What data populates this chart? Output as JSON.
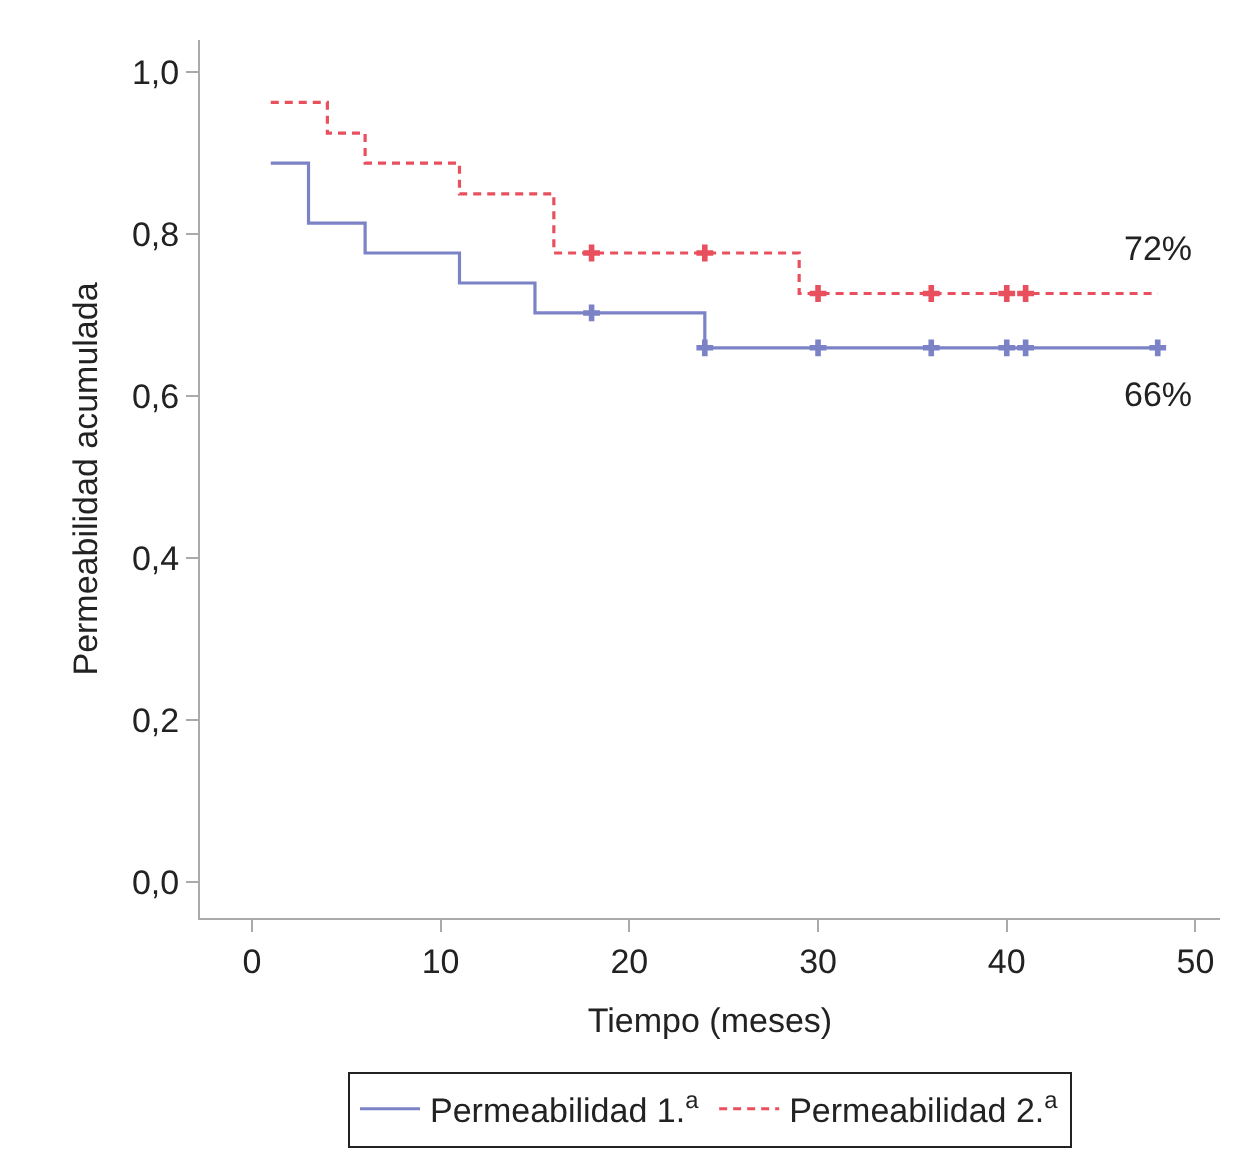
{
  "chart_data": {
    "type": "step",
    "xlabel": "Tiempo (meses)",
    "ylabel": "Permeabilidad acumulada",
    "xlim": [
      -2.75,
      51.3
    ],
    "xticks": [
      0,
      10,
      20,
      30,
      40,
      50
    ],
    "ylim": [
      -0.044,
      1.04
    ],
    "yticks": [
      {
        "value": 0,
        "label": "0,0"
      },
      {
        "value": 0.2,
        "label": "0,2"
      },
      {
        "value": 0.4,
        "label": "0,4"
      },
      {
        "value": 0.6,
        "label": "0,6"
      },
      {
        "value": 0.8,
        "label": "0,8"
      },
      {
        "value": 1,
        "label": "1,0"
      }
    ],
    "grid": false,
    "legend": "bottom",
    "marker": "none",
    "series": [
      {
        "name": "Permeabilidad 1.$^{a}$",
        "color": "#7b83c6",
        "line_style": "solid",
        "x": [
          1,
          3,
          6,
          11,
          15,
          24,
          48
        ],
        "values": [
          0.888,
          0.814,
          0.777,
          0.74,
          0.703,
          0.66,
          0.66
        ]
      },
      {
        "name": "Permeabilidad 2.$^{a}$",
        "color": "#e8505e",
        "line_style": "dashed",
        "x": [
          1,
          4,
          6,
          11,
          16,
          29,
          48
        ],
        "values": [
          0.963,
          0.925,
          0.888,
          0.85,
          0.777,
          0.727,
          0.727
        ]
      },
      {
        "type": "scatter",
        "marker": "cross",
        "color": "#7b83c6",
        "x": [
          18,
          24,
          30,
          36,
          40,
          41,
          48
        ],
        "values": [
          0.703,
          0.66,
          0.66,
          0.66,
          0.66,
          0.66,
          0.66
        ]
      },
      {
        "type": "scatter",
        "marker": "cross",
        "color": "#e8505e",
        "x": [
          18,
          24,
          30,
          36,
          40,
          41
        ],
        "values": [
          0.777,
          0.777,
          0.727,
          0.727,
          0.727,
          0.727
        ]
      }
    ],
    "annotations": [
      {
        "text": "72%",
        "x": 48,
        "y": 0.727
      },
      {
        "text": "66%",
        "x": 48,
        "y": 0.66
      }
    ]
  }
}
